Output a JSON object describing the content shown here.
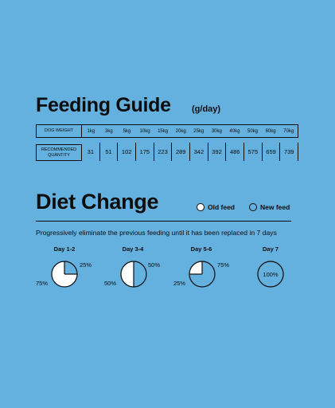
{
  "feeding_guide": {
    "title": "Feeding Guide",
    "unit": "(g/day)",
    "weight_label": "DOG WEIGHT",
    "quantity_label": "RECOMMENDED QUANTITY",
    "weights": [
      "1kg",
      "3kg",
      "5kg",
      "10kg",
      "15kg",
      "20kg",
      "25kg",
      "30kg",
      "40kg",
      "50kg",
      "60kg",
      "70kg"
    ],
    "quantities": [
      "31",
      "51",
      "102",
      "175",
      "223",
      "289",
      "342",
      "392",
      "486",
      "575",
      "659",
      "739"
    ]
  },
  "diet_change": {
    "title": "Diet Change",
    "legend": {
      "old": "Old feed",
      "new": "New feed"
    },
    "description": "Progressively eliminate the previous feeding until it has been replaced in 7 days",
    "days": [
      {
        "label": "Day 1-2",
        "old_fraction": 0.75,
        "old_pct": "75%",
        "new_pct": "25%"
      },
      {
        "label": "Day 3-4",
        "old_fraction": 0.5,
        "old_pct": "50%",
        "new_pct": "50%"
      },
      {
        "label": "Day 5-6",
        "old_fraction": 0.25,
        "old_pct": "25%",
        "new_pct": "75%"
      },
      {
        "label": "Day 7",
        "old_fraction": 0,
        "old_pct": "",
        "new_pct": "100%"
      }
    ]
  },
  "colors": {
    "background": "#64b0df",
    "ink": "#0d0d0d",
    "old_feed": "#ffffff"
  }
}
